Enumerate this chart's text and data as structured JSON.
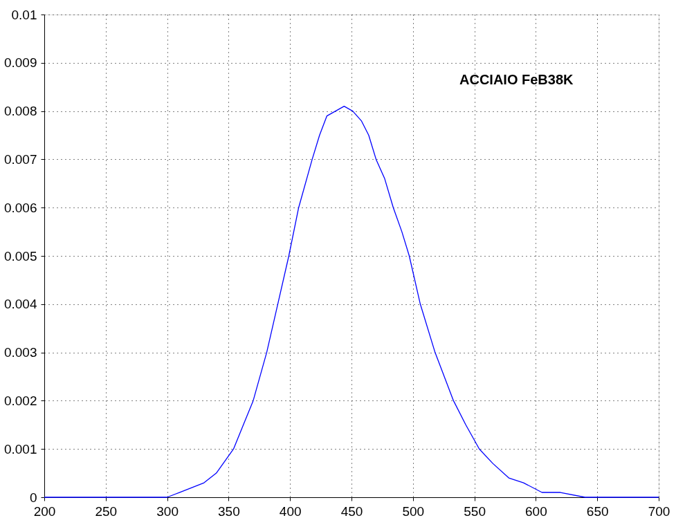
{
  "chart_data": {
    "type": "line",
    "annotations": [
      "ACCIAIO FeB38K"
    ],
    "series": [
      {
        "color": "#0000ff",
        "x": [
          200,
          300,
          310,
          320,
          330,
          340,
          354,
          362,
          370,
          381,
          390,
          399,
          407,
          418,
          424,
          430,
          437,
          444,
          451,
          458,
          464,
          470,
          477,
          484,
          491,
          497,
          506,
          518,
          533,
          543,
          554,
          565,
          578,
          590,
          605,
          620,
          640,
          700
        ],
        "values": [
          0,
          0,
          0.0001,
          0.0002,
          0.0003,
          0.0005,
          0.001,
          0.0015,
          0.002,
          0.003,
          0.004,
          0.005,
          0.006,
          0.007,
          0.0075,
          0.0079,
          0.008,
          0.0081,
          0.008,
          0.0078,
          0.0075,
          0.007,
          0.0066,
          0.006,
          0.0055,
          0.005,
          0.004,
          0.003,
          0.002,
          0.0015,
          0.001,
          0.0007,
          0.0004,
          0.0003,
          0.0001,
          0.0001,
          0,
          0
        ]
      }
    ],
    "xlim": [
      200,
      700
    ],
    "xticks": [
      200,
      250,
      300,
      350,
      400,
      450,
      500,
      550,
      600,
      650,
      700
    ],
    "ylim": [
      0,
      0.01
    ],
    "yticks": [
      0,
      0.001,
      0.002,
      0.003,
      0.004,
      0.005,
      0.006,
      0.007,
      0.008,
      0.009,
      0.01
    ],
    "grid": true,
    "marker": "none",
    "line_style": "solid"
  }
}
